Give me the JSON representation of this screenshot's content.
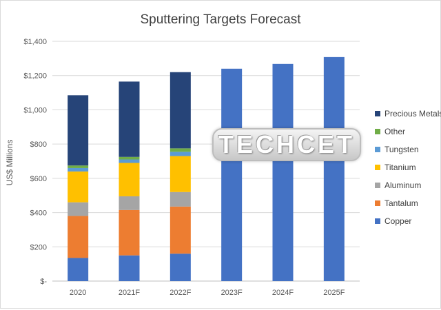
{
  "chart_data": {
    "type": "bar",
    "stacked": true,
    "title": "Sputtering Targets Forecast",
    "xlabel": "",
    "ylabel": "US$ Millions",
    "ylim": [
      0,
      1400
    ],
    "yticks": [
      0,
      200,
      400,
      600,
      800,
      1000,
      1200,
      1400
    ],
    "ytick_labels": [
      "$-",
      "$200",
      "$400",
      "$600",
      "$800",
      "$1,000",
      "$1,200",
      "$1,400"
    ],
    "grid": true,
    "legend_position": "right",
    "categories": [
      "2020",
      "2021F",
      "2022F",
      "2023F",
      "2024F",
      "2025F"
    ],
    "series": [
      {
        "name": "Copper",
        "color": "#4472c4",
        "values": [
          135,
          150,
          160,
          1240,
          1268,
          1308
        ]
      },
      {
        "name": "Tantalum",
        "color": "#ed7d31",
        "values": [
          245,
          265,
          275,
          0,
          0,
          0
        ]
      },
      {
        "name": "Aluminum",
        "color": "#a5a5a5",
        "values": [
          80,
          80,
          85,
          0,
          0,
          0
        ]
      },
      {
        "name": "Titanium",
        "color": "#ffc000",
        "values": [
          180,
          195,
          210,
          0,
          0,
          0
        ]
      },
      {
        "name": "Tungsten",
        "color": "#5b9bd5",
        "values": [
          20,
          20,
          25,
          0,
          0,
          0
        ]
      },
      {
        "name": "Other",
        "color": "#70ad47",
        "values": [
          15,
          15,
          20,
          0,
          0,
          0
        ]
      },
      {
        "name": "Precious Metals",
        "color": "#264478",
        "values": [
          410,
          440,
          445,
          0,
          0,
          0
        ]
      }
    ],
    "legend_labels": [
      "Precious Metals",
      "Other",
      "Tungsten",
      "Titanium",
      "Aluminum",
      "Tantalum",
      "Copper"
    ]
  },
  "watermark": {
    "text": "TECHCET"
  }
}
